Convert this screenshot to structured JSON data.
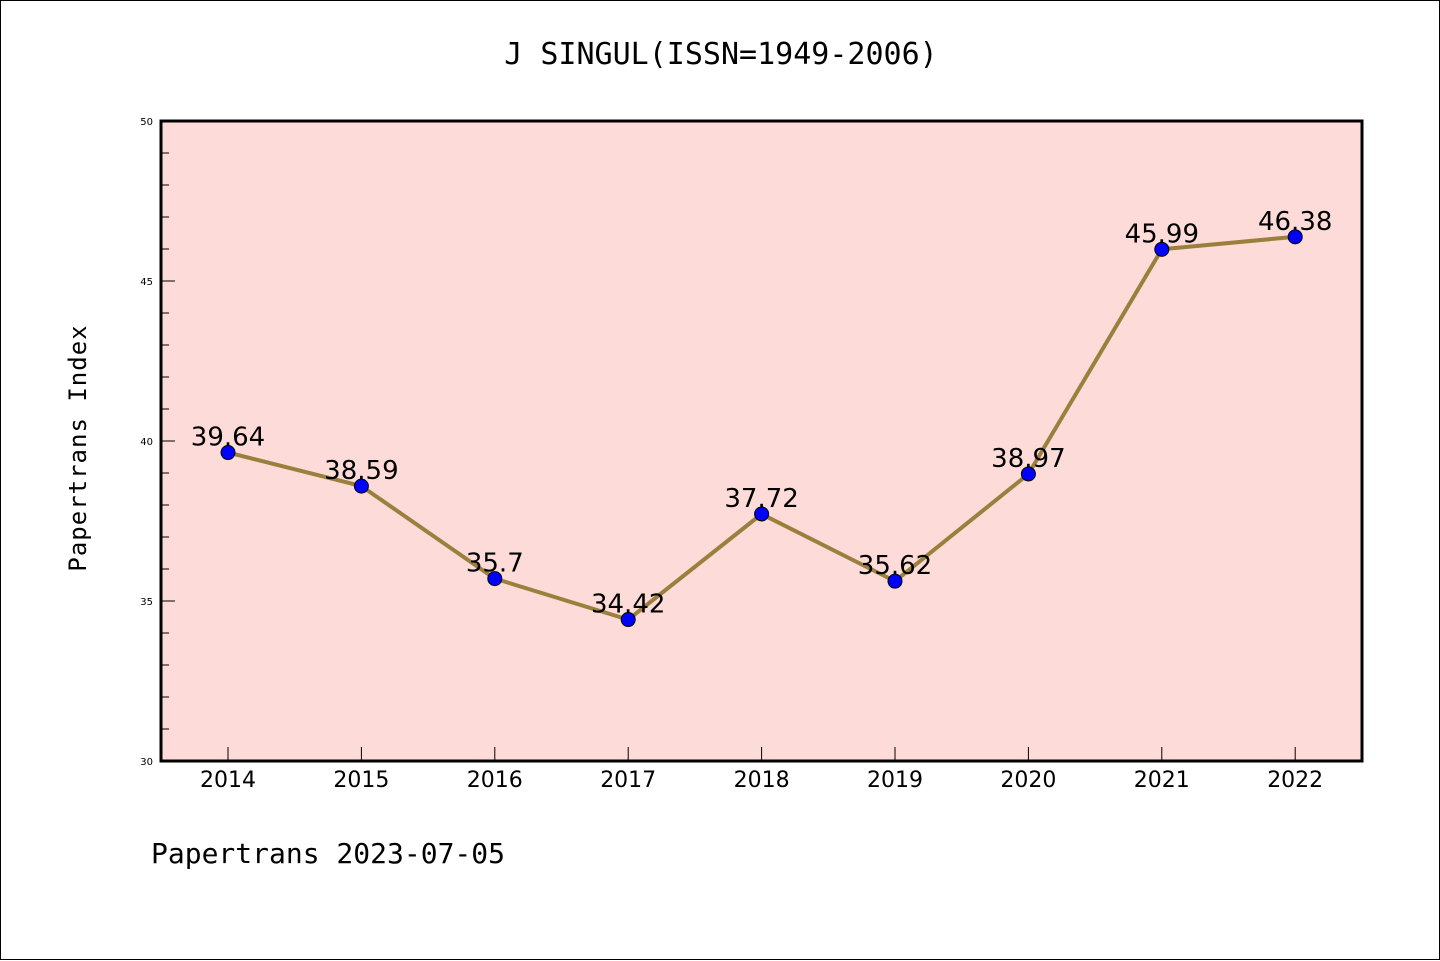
{
  "chart_data": {
    "type": "line",
    "title": "J SINGUL(ISSN=1949-2006)",
    "xlabel": "",
    "ylabel": "Papertrans Index",
    "categories": [
      "2014",
      "2015",
      "2016",
      "2017",
      "2018",
      "2019",
      "2020",
      "2021",
      "2022"
    ],
    "series": [
      {
        "values": [
          39.64,
          38.59,
          35.7,
          34.42,
          37.72,
          35.62,
          38.97,
          45.99,
          46.38
        ]
      }
    ],
    "data_labels": [
      "39.64",
      "38.59",
      "35.7",
      "34.42",
      "37.72",
      "35.62",
      "38.97",
      "45.99",
      "46.38"
    ],
    "ylim": [
      30,
      50
    ],
    "yticks": [
      30,
      35,
      40,
      45,
      50
    ],
    "grid": false,
    "colors": {
      "plot_background": "#fddbd8",
      "line": "#9b7f3c",
      "marker": "#0000ff"
    }
  },
  "footer": {
    "note": "Papertrans 2023-07-05"
  }
}
